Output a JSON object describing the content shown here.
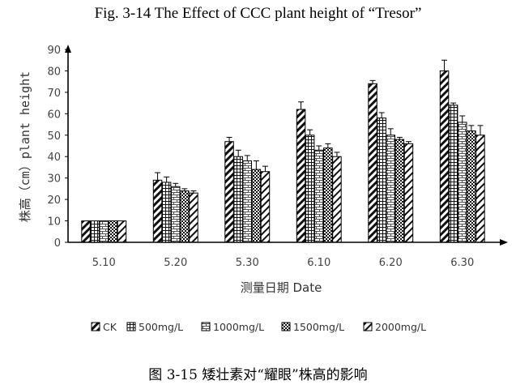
{
  "figure": {
    "title": "Fig. 3-14 The Effect of CCC plant height of  “Tresor”",
    "caption": "图 3-15  矮壮素对“耀眼”株高的影响"
  },
  "chart_data": {
    "type": "bar",
    "title": "Fig. 3-14 The Effect of CCC plant height of  “Tresor”",
    "xlabel": "测量日期 Date",
    "ylabel": "株高（cm）plant height",
    "ylim": [
      0,
      90
    ],
    "yticks": [
      0,
      10,
      20,
      30,
      40,
      50,
      60,
      70,
      80,
      90
    ],
    "categories": [
      "5.10",
      "5.20",
      "5.30",
      "6.10",
      "6.20",
      "6.30"
    ],
    "legend_position": "bottom",
    "series": [
      {
        "name": "CK",
        "pattern": "diagonal",
        "values": [
          10,
          29,
          47,
          62,
          74,
          80
        ],
        "errors": [
          0,
          3.5,
          2,
          3.5,
          1.5,
          5
        ]
      },
      {
        "name": "500mg/L",
        "pattern": "grid",
        "values": [
          10,
          28,
          40,
          50,
          58,
          64
        ],
        "errors": [
          0,
          2.5,
          3,
          2.5,
          2.5,
          1
        ]
      },
      {
        "name": "1000mg/L",
        "pattern": "brick",
        "values": [
          10,
          26,
          38,
          43,
          50,
          56
        ],
        "errors": [
          0,
          1.5,
          2.5,
          2,
          3,
          3
        ]
      },
      {
        "name": "1500mg/L",
        "pattern": "dots",
        "values": [
          10,
          24,
          34,
          44,
          48,
          52
        ],
        "errors": [
          0,
          1,
          4,
          2,
          1,
          2.5
        ]
      },
      {
        "name": "2000mg/L",
        "pattern": "diagonal-light",
        "values": [
          10,
          23,
          33,
          40,
          46,
          50
        ],
        "errors": [
          0,
          1,
          2.5,
          2,
          1,
          4.5
        ]
      }
    ]
  }
}
